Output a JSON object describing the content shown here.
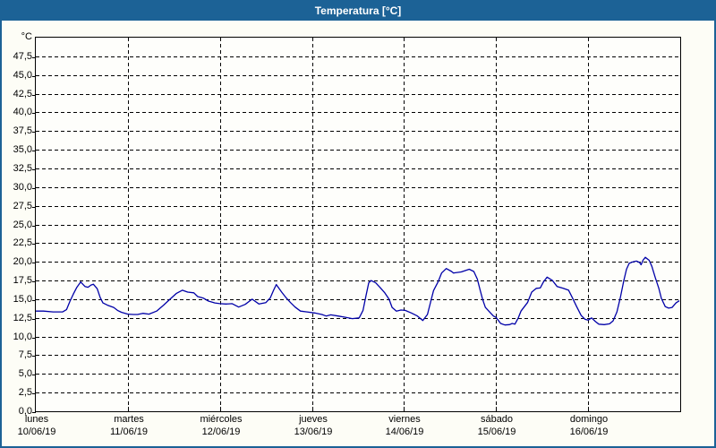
{
  "window": {
    "title": "Temperatura [°C]"
  },
  "colors": {
    "titlebar_bg": "#1c6296",
    "titlebar_text": "#ffffff",
    "window_border": "#1c6296",
    "background": "#fdfdf6",
    "plot_border": "#000000",
    "grid": "#000000",
    "line": "#0000a8"
  },
  "y_axis": {
    "unit_label": "°C",
    "tick_labels": [
      "47,5",
      "45,0",
      "42,5",
      "40,0",
      "37,5",
      "35,0",
      "32,5",
      "30,0",
      "27,5",
      "25,0",
      "22,5",
      "20,0",
      "17,5",
      "15,0",
      "12,5",
      "10,0",
      "7,5",
      "5,0",
      "2,5",
      "0,0"
    ],
    "tick_values": [
      47.5,
      45,
      42.5,
      40,
      37.5,
      35,
      32.5,
      30,
      27.5,
      25,
      22.5,
      20,
      17.5,
      15,
      12.5,
      10,
      7.5,
      5,
      2.5,
      0
    ],
    "min": 0,
    "max": 50,
    "step": 2.5
  },
  "x_axis": {
    "days": [
      {
        "name": "lunes",
        "date": "10/06/19"
      },
      {
        "name": "martes",
        "date": "11/06/19"
      },
      {
        "name": "miércoles",
        "date": "12/06/19"
      },
      {
        "name": "jueves",
        "date": "13/06/19"
      },
      {
        "name": "viernes",
        "date": "14/06/19"
      },
      {
        "name": "sábado",
        "date": "15/06/19"
      },
      {
        "name": "domingo",
        "date": "16/06/19"
      }
    ]
  },
  "chart_data": {
    "type": "line",
    "title": "Temperatura [°C]",
    "ylabel": "°C",
    "ylim": [
      0,
      50
    ],
    "xlim_hours": [
      0,
      168
    ],
    "x_unit": "hours since lunes 10/06/19 00:00",
    "grid": "dashed",
    "legend": "none",
    "series": [
      {
        "name": "Temperatura",
        "color": "#0000a8",
        "points": [
          [
            0,
            13.4
          ],
          [
            2,
            13.4
          ],
          [
            4.5,
            13.3
          ],
          [
            7,
            13.3
          ],
          [
            8,
            13.6
          ],
          [
            8.9,
            14.7
          ],
          [
            9.8,
            15.7
          ],
          [
            10.7,
            16.6
          ],
          [
            11.7,
            17.3
          ],
          [
            12.8,
            16.7
          ],
          [
            13.6,
            16.6
          ],
          [
            14.4,
            16.9
          ],
          [
            15,
            17.0
          ],
          [
            16,
            16.4
          ],
          [
            16.8,
            15.2
          ],
          [
            17.5,
            14.5
          ],
          [
            18.7,
            14.2
          ],
          [
            20.3,
            13.9
          ],
          [
            21.3,
            13.5
          ],
          [
            22.3,
            13.25
          ],
          [
            24,
            13.0
          ],
          [
            25.5,
            12.95
          ],
          [
            26.5,
            12.95
          ],
          [
            27.9,
            13.1
          ],
          [
            29.5,
            13.0
          ],
          [
            31.5,
            13.4
          ],
          [
            33.3,
            14.2
          ],
          [
            35,
            15.0
          ],
          [
            36.6,
            15.75
          ],
          [
            38.2,
            16.2
          ],
          [
            39.6,
            15.95
          ],
          [
            41.2,
            15.85
          ],
          [
            42.2,
            15.35
          ],
          [
            43.6,
            15.15
          ],
          [
            45,
            14.75
          ],
          [
            46.7,
            14.5
          ],
          [
            48,
            14.4
          ],
          [
            49.6,
            14.35
          ],
          [
            51.2,
            14.4
          ],
          [
            52.9,
            13.95
          ],
          [
            54.6,
            14.3
          ],
          [
            56.4,
            15.0
          ],
          [
            58.2,
            14.35
          ],
          [
            60,
            14.55
          ],
          [
            61.1,
            15.15
          ],
          [
            62,
            16.2
          ],
          [
            62.7,
            16.95
          ],
          [
            64.1,
            15.95
          ],
          [
            65.3,
            15.15
          ],
          [
            66.4,
            14.55
          ],
          [
            67.6,
            13.95
          ],
          [
            69,
            13.4
          ],
          [
            70.7,
            13.3
          ],
          [
            72.7,
            13.15
          ],
          [
            74.6,
            12.95
          ],
          [
            75.7,
            12.75
          ],
          [
            76.9,
            12.9
          ],
          [
            78.8,
            12.75
          ],
          [
            80.4,
            12.6
          ],
          [
            82.5,
            12.4
          ],
          [
            84.3,
            12.5
          ],
          [
            85.3,
            13.5
          ],
          [
            86.1,
            15.5
          ],
          [
            86.8,
            17.2
          ],
          [
            87.4,
            17.5
          ],
          [
            88.6,
            17.2
          ],
          [
            89.7,
            16.6
          ],
          [
            90.9,
            15.9
          ],
          [
            92.1,
            15.0
          ],
          [
            92.9,
            13.9
          ],
          [
            94,
            13.4
          ],
          [
            95.2,
            13.55
          ],
          [
            96.3,
            13.5
          ],
          [
            97.9,
            13.15
          ],
          [
            99.5,
            12.75
          ],
          [
            100.9,
            12.15
          ],
          [
            102.1,
            12.95
          ],
          [
            103,
            14.75
          ],
          [
            103.7,
            16.15
          ],
          [
            104.9,
            17.35
          ],
          [
            105.8,
            18.5
          ],
          [
            107,
            19.1
          ],
          [
            108.4,
            18.7
          ],
          [
            108.9,
            18.5
          ],
          [
            110.9,
            18.65
          ],
          [
            113,
            19.0
          ],
          [
            114.2,
            18.7
          ],
          [
            115.1,
            17.7
          ],
          [
            115.8,
            16.3
          ],
          [
            116.5,
            14.95
          ],
          [
            117.2,
            13.9
          ],
          [
            118.2,
            13.35
          ],
          [
            119.3,
            12.75
          ],
          [
            120,
            12.55
          ],
          [
            121.2,
            11.75
          ],
          [
            122.3,
            11.55
          ],
          [
            123.5,
            11.6
          ],
          [
            124.2,
            11.75
          ],
          [
            124.9,
            11.65
          ],
          [
            125.8,
            12.5
          ],
          [
            126.5,
            13.4
          ],
          [
            128.2,
            14.55
          ],
          [
            129.3,
            15.95
          ],
          [
            130.5,
            16.45
          ],
          [
            131.5,
            16.5
          ],
          [
            132.4,
            17.35
          ],
          [
            133.3,
            17.95
          ],
          [
            134.7,
            17.5
          ],
          [
            135.9,
            16.7
          ],
          [
            137.5,
            16.45
          ],
          [
            138.9,
            16.2
          ],
          [
            139.8,
            15.3
          ],
          [
            141,
            14.0
          ],
          [
            142.2,
            12.8
          ],
          [
            143.2,
            12.3
          ],
          [
            144,
            12.2
          ],
          [
            144.9,
            12.5
          ],
          [
            145.9,
            12.0
          ],
          [
            146.8,
            11.65
          ],
          [
            148.2,
            11.6
          ],
          [
            149.6,
            11.7
          ],
          [
            150.5,
            12.1
          ],
          [
            151.5,
            13.3
          ],
          [
            152.4,
            15.2
          ],
          [
            153.3,
            17.5
          ],
          [
            154,
            19.0
          ],
          [
            154.7,
            19.8
          ],
          [
            155.7,
            20.0
          ],
          [
            156.6,
            20.1
          ],
          [
            157.4,
            19.9
          ],
          [
            157.8,
            19.6
          ],
          [
            158.3,
            20.2
          ],
          [
            158.9,
            20.6
          ],
          [
            159.9,
            20.2
          ],
          [
            160.6,
            19.4
          ],
          [
            161.5,
            17.9
          ],
          [
            162.4,
            16.5
          ],
          [
            163.1,
            15.1
          ],
          [
            164.1,
            14.0
          ],
          [
            165,
            13.8
          ],
          [
            165.9,
            13.9
          ],
          [
            166.9,
            14.5
          ],
          [
            167.8,
            14.8
          ]
        ]
      }
    ]
  }
}
